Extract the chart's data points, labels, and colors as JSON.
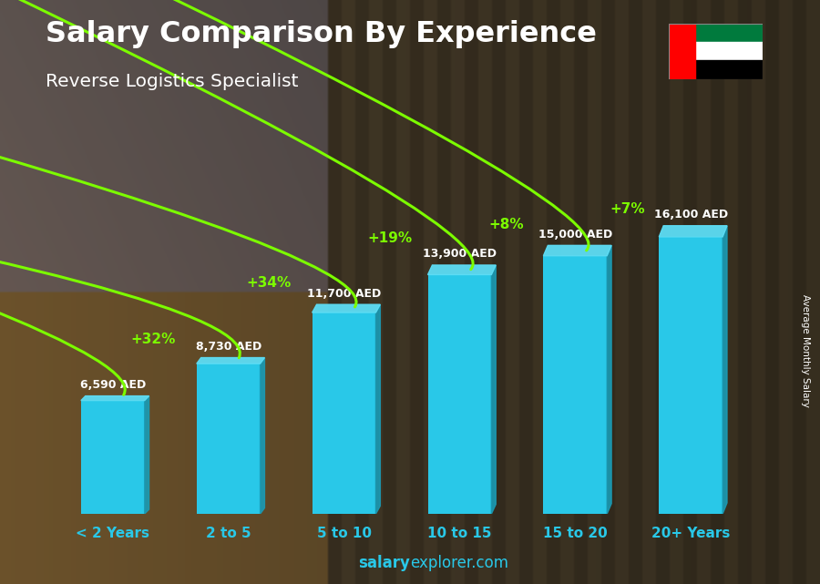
{
  "title": "Salary Comparison By Experience",
  "subtitle": "Reverse Logistics Specialist",
  "categories": [
    "< 2 Years",
    "2 to 5",
    "5 to 10",
    "10 to 15",
    "15 to 20",
    "20+ Years"
  ],
  "values": [
    6590,
    8730,
    11700,
    13900,
    15000,
    16100
  ],
  "value_labels": [
    "6,590 AED",
    "8,730 AED",
    "11,700 AED",
    "13,900 AED",
    "15,000 AED",
    "16,100 AED"
  ],
  "pct_labels": [
    "+32%",
    "+34%",
    "+19%",
    "+8%",
    "+7%"
  ],
  "bar_color_main": "#29C8E8",
  "bar_color_side": "#1A9BB5",
  "bar_color_top": "#5DDDF5",
  "bg_left_color": "#C4923A",
  "bg_right_color": "#7A6040",
  "title_color": "#FFFFFF",
  "subtitle_color": "#FFFFFF",
  "value_color": "#FFFFFF",
  "pct_color": "#7CFC00",
  "tick_color": "#29C8E8",
  "ylabel_color": "#FFFFFF",
  "watermark_bold": "salary",
  "watermark_normal": "explorer.com",
  "ylabel_side": "Average Monthly Salary",
  "ylim_max": 19000,
  "flag_colors": {
    "red": "#FF0000",
    "green": "#007A3D",
    "white": "#FFFFFF",
    "black": "#000000"
  }
}
